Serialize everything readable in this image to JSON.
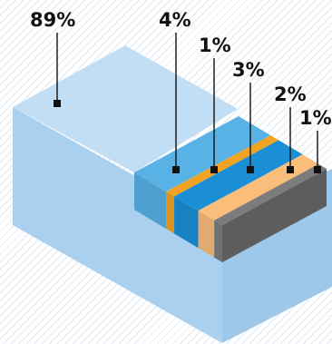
{
  "chart_data": {
    "type": "bar",
    "title": "",
    "categories": [
      "",
      "",
      "",
      "",
      "",
      ""
    ],
    "values": [
      89,
      4,
      1,
      3,
      2,
      1
    ],
    "labels": [
      "89%",
      "4%",
      "1%",
      "3%",
      "2%",
      "1%"
    ],
    "colors": [
      "#b7d8f2",
      "#59b2e6",
      "#f3a323",
      "#1a8fd6",
      "#fbbd7a",
      "#7c7c7c"
    ],
    "legend": "none",
    "grid": false
  }
}
